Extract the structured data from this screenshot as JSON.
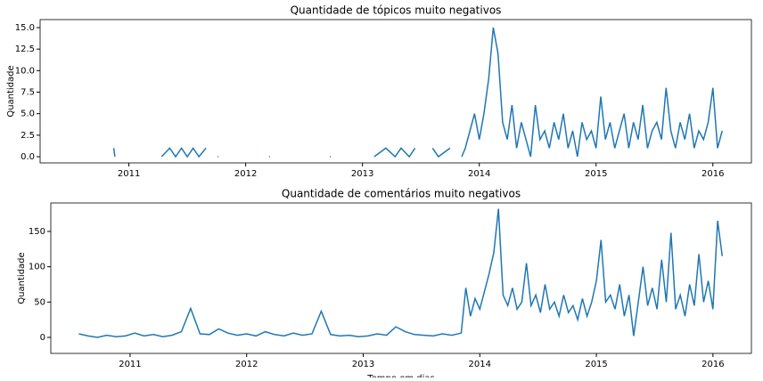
{
  "chart_data": [
    {
      "type": "line",
      "title": "Quantidade de tópicos muito negativos",
      "ylabel": "Quantidade",
      "xlim": [
        2010.24,
        2016.33
      ],
      "xticks": [
        2011,
        2012,
        2013,
        2014,
        2015,
        2016
      ],
      "ylim": [
        -0.72,
        15.93
      ],
      "yticks": [
        {
          "value": 0,
          "label": "0.0"
        },
        {
          "value": 2.5,
          "label": "2.5"
        },
        {
          "value": 5,
          "label": "5.0"
        },
        {
          "value": 7.5,
          "label": "7.5"
        },
        {
          "value": 10,
          "label": "10.0"
        },
        {
          "value": 12.5,
          "label": "12.5"
        },
        {
          "value": 15,
          "label": "15.0"
        }
      ],
      "x": [
        2010.87,
        2010.88,
        2010.95,
        2011.28,
        2011.35,
        2011.4,
        2011.45,
        2011.5,
        2011.55,
        2011.6,
        2011.66,
        2011.68,
        2011.76,
        2011.77,
        2012.2,
        2012.21,
        2012.72,
        2012.73,
        2013.1,
        2013.2,
        2013.28,
        2013.33,
        2013.4,
        2013.45,
        2013.5,
        2013.6,
        2013.65,
        2013.75,
        2013.8,
        2013.85,
        2013.88,
        2013.92,
        2013.96,
        2014,
        2014.04,
        2014.08,
        2014.12,
        2014.16,
        2014.2,
        2014.24,
        2014.28,
        2014.32,
        2014.36,
        2014.4,
        2014.44,
        2014.48,
        2014.52,
        2014.56,
        2014.6,
        2014.64,
        2014.68,
        2014.72,
        2014.76,
        2014.8,
        2014.84,
        2014.88,
        2014.92,
        2014.96,
        2015,
        2015.04,
        2015.08,
        2015.12,
        2015.16,
        2015.2,
        2015.24,
        2015.28,
        2015.32,
        2015.36,
        2015.4,
        2015.44,
        2015.48,
        2015.52,
        2015.56,
        2015.6,
        2015.64,
        2015.68,
        2015.72,
        2015.76,
        2015.8,
        2015.84,
        2015.88,
        2015.92,
        2015.96,
        2016,
        2016.04,
        2016.08
      ],
      "series": [
        {
          "name": "Quantidade",
          "color": "#1f77b4",
          "values": [
            1,
            0,
            null,
            0,
            1,
            0,
            1,
            0,
            1,
            0,
            1,
            null,
            0,
            null,
            0,
            null,
            0,
            null,
            0,
            1,
            0,
            1,
            0,
            1,
            null,
            1,
            0,
            1,
            null,
            0,
            1,
            3,
            5,
            2,
            5,
            9,
            15,
            12,
            4,
            2,
            6,
            1,
            4,
            2,
            0,
            6,
            2,
            3,
            1,
            4,
            2,
            5,
            1,
            3,
            0,
            4,
            2,
            3,
            1,
            7,
            2,
            4,
            1,
            3,
            5,
            1,
            4,
            2,
            6,
            1,
            3,
            4,
            2,
            8,
            3,
            1,
            4,
            2,
            5,
            1,
            3,
            2,
            4,
            8,
            1,
            3
          ]
        }
      ]
    },
    {
      "type": "line",
      "title": "Quantidade de comentários muito negativos",
      "ylabel": "Quantidade",
      "xlabel": "Tempo em dias",
      "xlim": [
        2010.32,
        2016.33
      ],
      "xticks": [
        2011,
        2012,
        2013,
        2014,
        2015,
        2016
      ],
      "ylim": [
        -22.7,
        190.3
      ],
      "yticks": [
        0,
        50,
        100,
        150
      ],
      "x": [
        2010.56,
        2010.64,
        2010.72,
        2010.8,
        2010.88,
        2010.96,
        2011.04,
        2011.12,
        2011.2,
        2011.28,
        2011.36,
        2011.44,
        2011.52,
        2011.6,
        2011.68,
        2011.76,
        2011.84,
        2011.92,
        2012,
        2012.08,
        2012.16,
        2012.24,
        2012.32,
        2012.4,
        2012.48,
        2012.56,
        2012.64,
        2012.72,
        2012.8,
        2012.88,
        2012.96,
        2013.04,
        2013.12,
        2013.2,
        2013.28,
        2013.36,
        2013.44,
        2013.52,
        2013.6,
        2013.68,
        2013.76,
        2013.84,
        2013.88,
        2013.92,
        2013.96,
        2014,
        2014.04,
        2014.08,
        2014.12,
        2014.16,
        2014.2,
        2014.24,
        2014.28,
        2014.32,
        2014.36,
        2014.4,
        2014.44,
        2014.48,
        2014.52,
        2014.56,
        2014.6,
        2014.64,
        2014.68,
        2014.72,
        2014.76,
        2014.8,
        2014.84,
        2014.88,
        2014.92,
        2014.96,
        2015,
        2015.04,
        2015.08,
        2015.12,
        2015.16,
        2015.2,
        2015.24,
        2015.28,
        2015.32,
        2015.36,
        2015.4,
        2015.44,
        2015.48,
        2015.52,
        2015.56,
        2015.6,
        2015.64,
        2015.68,
        2015.72,
        2015.76,
        2015.8,
        2015.84,
        2015.88,
        2015.92,
        2015.96,
        2016,
        2016.04,
        2016.08
      ],
      "series": [
        {
          "name": "Quantidade",
          "color": "#1f77b4",
          "values": [
            5,
            2,
            0,
            3,
            1,
            2,
            6,
            2,
            4,
            1,
            3,
            8,
            41,
            5,
            4,
            12,
            6,
            3,
            5,
            2,
            8,
            4,
            2,
            6,
            3,
            5,
            37,
            4,
            2,
            3,
            1,
            2,
            5,
            3,
            15,
            8,
            4,
            3,
            2,
            5,
            3,
            6,
            70,
            30,
            55,
            40,
            65,
            90,
            120,
            182,
            60,
            45,
            70,
            40,
            50,
            105,
            45,
            60,
            35,
            75,
            40,
            50,
            30,
            60,
            35,
            45,
            25,
            55,
            30,
            50,
            80,
            138,
            50,
            60,
            40,
            75,
            30,
            60,
            2,
            50,
            100,
            45,
            70,
            40,
            110,
            50,
            148,
            40,
            60,
            30,
            75,
            45,
            118,
            50,
            80,
            40,
            165,
            115
          ]
        }
      ]
    }
  ]
}
